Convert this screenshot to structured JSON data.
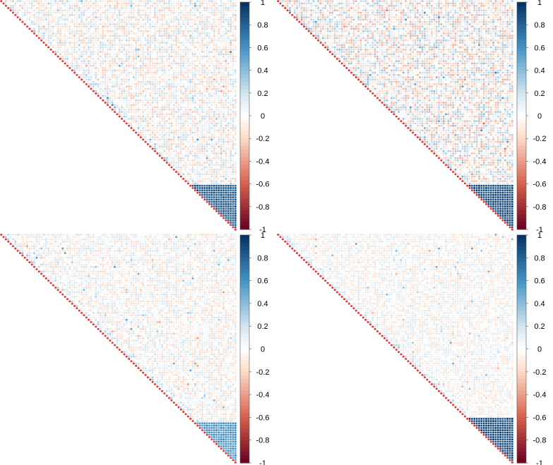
{
  "chart_data": [
    {
      "type": "heatmap",
      "panel": "top-left",
      "matrix_shape": "upper-triangular",
      "n": 100,
      "diagonal_value": 1,
      "colorscale": {
        "low": "#67001f",
        "mid": "#ffffff",
        "high": "#053061"
      },
      "value_range": [
        -1,
        1
      ],
      "dense_block": {
        "start_frac": 0.8,
        "value": 0.85
      },
      "off_block_level": 0.15,
      "colorbar_ticks": [
        "1",
        "0.8",
        "0.6",
        "0.4",
        "0.2",
        "0",
        "-0.2",
        "-0.4",
        "-0.6",
        "-0.8",
        "-1"
      ]
    },
    {
      "type": "heatmap",
      "panel": "top-right",
      "matrix_shape": "upper-triangular",
      "n": 100,
      "diagonal_value": 1,
      "colorscale": {
        "low": "#67001f",
        "mid": "#ffffff",
        "high": "#053061"
      },
      "value_range": [
        -1,
        1
      ],
      "dense_block": {
        "start_frac": 0.8,
        "value": 0.9
      },
      "off_block_level": 0.2,
      "colorbar_ticks": [
        "1",
        "0.8",
        "0.6",
        "0.4",
        "0.2",
        "0",
        "-0.2",
        "-0.4",
        "-0.6",
        "-0.8",
        "-1"
      ]
    },
    {
      "type": "heatmap",
      "panel": "bottom-left",
      "matrix_shape": "upper-triangular",
      "n": 100,
      "diagonal_value": 1,
      "colorscale": {
        "low": "#67001f",
        "mid": "#ffffff",
        "high": "#053061"
      },
      "value_range": [
        -1,
        1
      ],
      "dense_block": {
        "start_frac": 0.82,
        "value": 0.6
      },
      "off_block_level": 0.12,
      "colorbar_ticks": [
        "1",
        "0.8",
        "0.6",
        "0.4",
        "0.2",
        "0",
        "-0.2",
        "-0.4",
        "-0.6",
        "-0.8",
        "-1"
      ]
    },
    {
      "type": "heatmap",
      "panel": "bottom-right",
      "matrix_shape": "upper-triangular",
      "n": 100,
      "diagonal_value": 1,
      "colorscale": {
        "low": "#67001f",
        "mid": "#ffffff",
        "high": "#053061"
      },
      "value_range": [
        -1,
        1
      ],
      "dense_block": {
        "start_frac": 0.8,
        "value": 0.9
      },
      "off_block_level": 0.1,
      "colorbar_ticks": [
        "1",
        "0.8",
        "0.6",
        "0.4",
        "0.2",
        "0",
        "-0.2",
        "-0.4",
        "-0.6",
        "-0.8",
        "-1"
      ]
    }
  ]
}
